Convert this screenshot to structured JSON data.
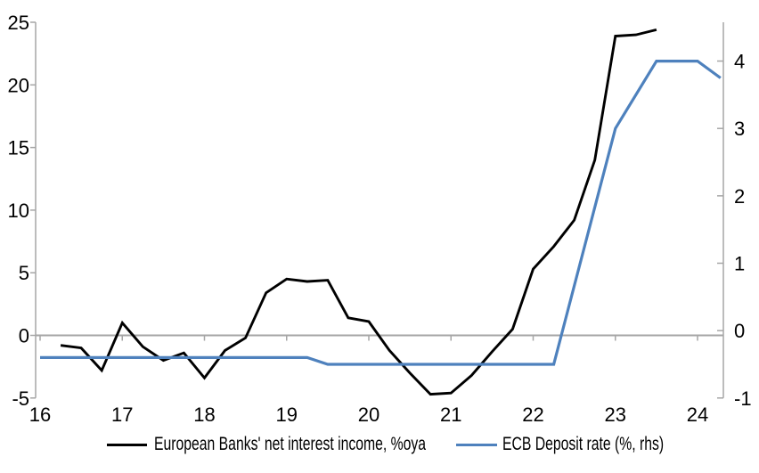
{
  "chart_data": {
    "type": "line",
    "title": "",
    "x_axis": {
      "ticks": [
        16,
        17,
        18,
        19,
        20,
        21,
        22,
        23,
        24
      ],
      "tick_labels": [
        "16",
        "17",
        "18",
        "19",
        "20",
        "21",
        "22",
        "23",
        "24"
      ],
      "range": [
        16,
        24.35
      ]
    },
    "left_axis": {
      "ticks": [
        -5,
        0,
        5,
        10,
        15,
        20,
        25
      ],
      "tick_labels": [
        "-5",
        "0",
        "5",
        "10",
        "15",
        "20",
        "25"
      ],
      "range": [
        -5,
        25
      ],
      "zero_line": true
    },
    "right_axis": {
      "ticks": [
        -1,
        0,
        1,
        2,
        3,
        4
      ],
      "tick_labels": [
        "-1",
        "0",
        "1",
        "2",
        "3",
        "4"
      ],
      "range": [
        -1,
        4.57
      ]
    },
    "series": [
      {
        "name": "European Banks' net interest income, %oya",
        "axis": "left",
        "color": "#000000",
        "points": [
          [
            16.25,
            -0.8
          ],
          [
            16.5,
            -1.0
          ],
          [
            16.75,
            -2.8
          ],
          [
            17.0,
            1.0
          ],
          [
            17.25,
            -0.9
          ],
          [
            17.5,
            -2.0
          ],
          [
            17.75,
            -1.4
          ],
          [
            18.0,
            -3.4
          ],
          [
            18.25,
            -1.2
          ],
          [
            18.5,
            -0.2
          ],
          [
            18.75,
            3.4
          ],
          [
            19.0,
            4.5
          ],
          [
            19.25,
            4.3
          ],
          [
            19.5,
            4.4
          ],
          [
            19.75,
            1.4
          ],
          [
            20.0,
            1.1
          ],
          [
            20.25,
            -1.2
          ],
          [
            20.5,
            -3.0
          ],
          [
            20.75,
            -4.7
          ],
          [
            21.0,
            -4.6
          ],
          [
            21.25,
            -3.2
          ],
          [
            21.5,
            -1.3
          ],
          [
            21.75,
            0.5
          ],
          [
            22.0,
            5.3
          ],
          [
            22.25,
            7.1
          ],
          [
            22.5,
            9.2
          ],
          [
            22.75,
            14.0
          ],
          [
            23.0,
            23.9
          ],
          [
            23.25,
            24.0
          ],
          [
            23.5,
            24.4
          ]
        ]
      },
      {
        "name": "ECB Deposit rate (%, rhs)",
        "axis": "right",
        "color": "#4e81bd",
        "points": [
          [
            16.0,
            -0.4
          ],
          [
            19.25,
            -0.4
          ],
          [
            19.5,
            -0.5
          ],
          [
            22.25,
            -0.5
          ],
          [
            23.0,
            3.0
          ],
          [
            23.5,
            4.0
          ],
          [
            24.0,
            4.0
          ],
          [
            24.28,
            3.75
          ]
        ]
      }
    ],
    "legend": {
      "position": "bottom",
      "items": [
        "European Banks' net interest income, %oya",
        "ECB Deposit rate (%, rhs)"
      ]
    },
    "grid": "zero-line-only"
  },
  "colors": {
    "background": "#ffffff",
    "axis": "#a6a6a6",
    "zero_line": "#a6a6a6",
    "text": "#000000",
    "series_black": "#000000",
    "series_blue": "#4e81bd"
  }
}
